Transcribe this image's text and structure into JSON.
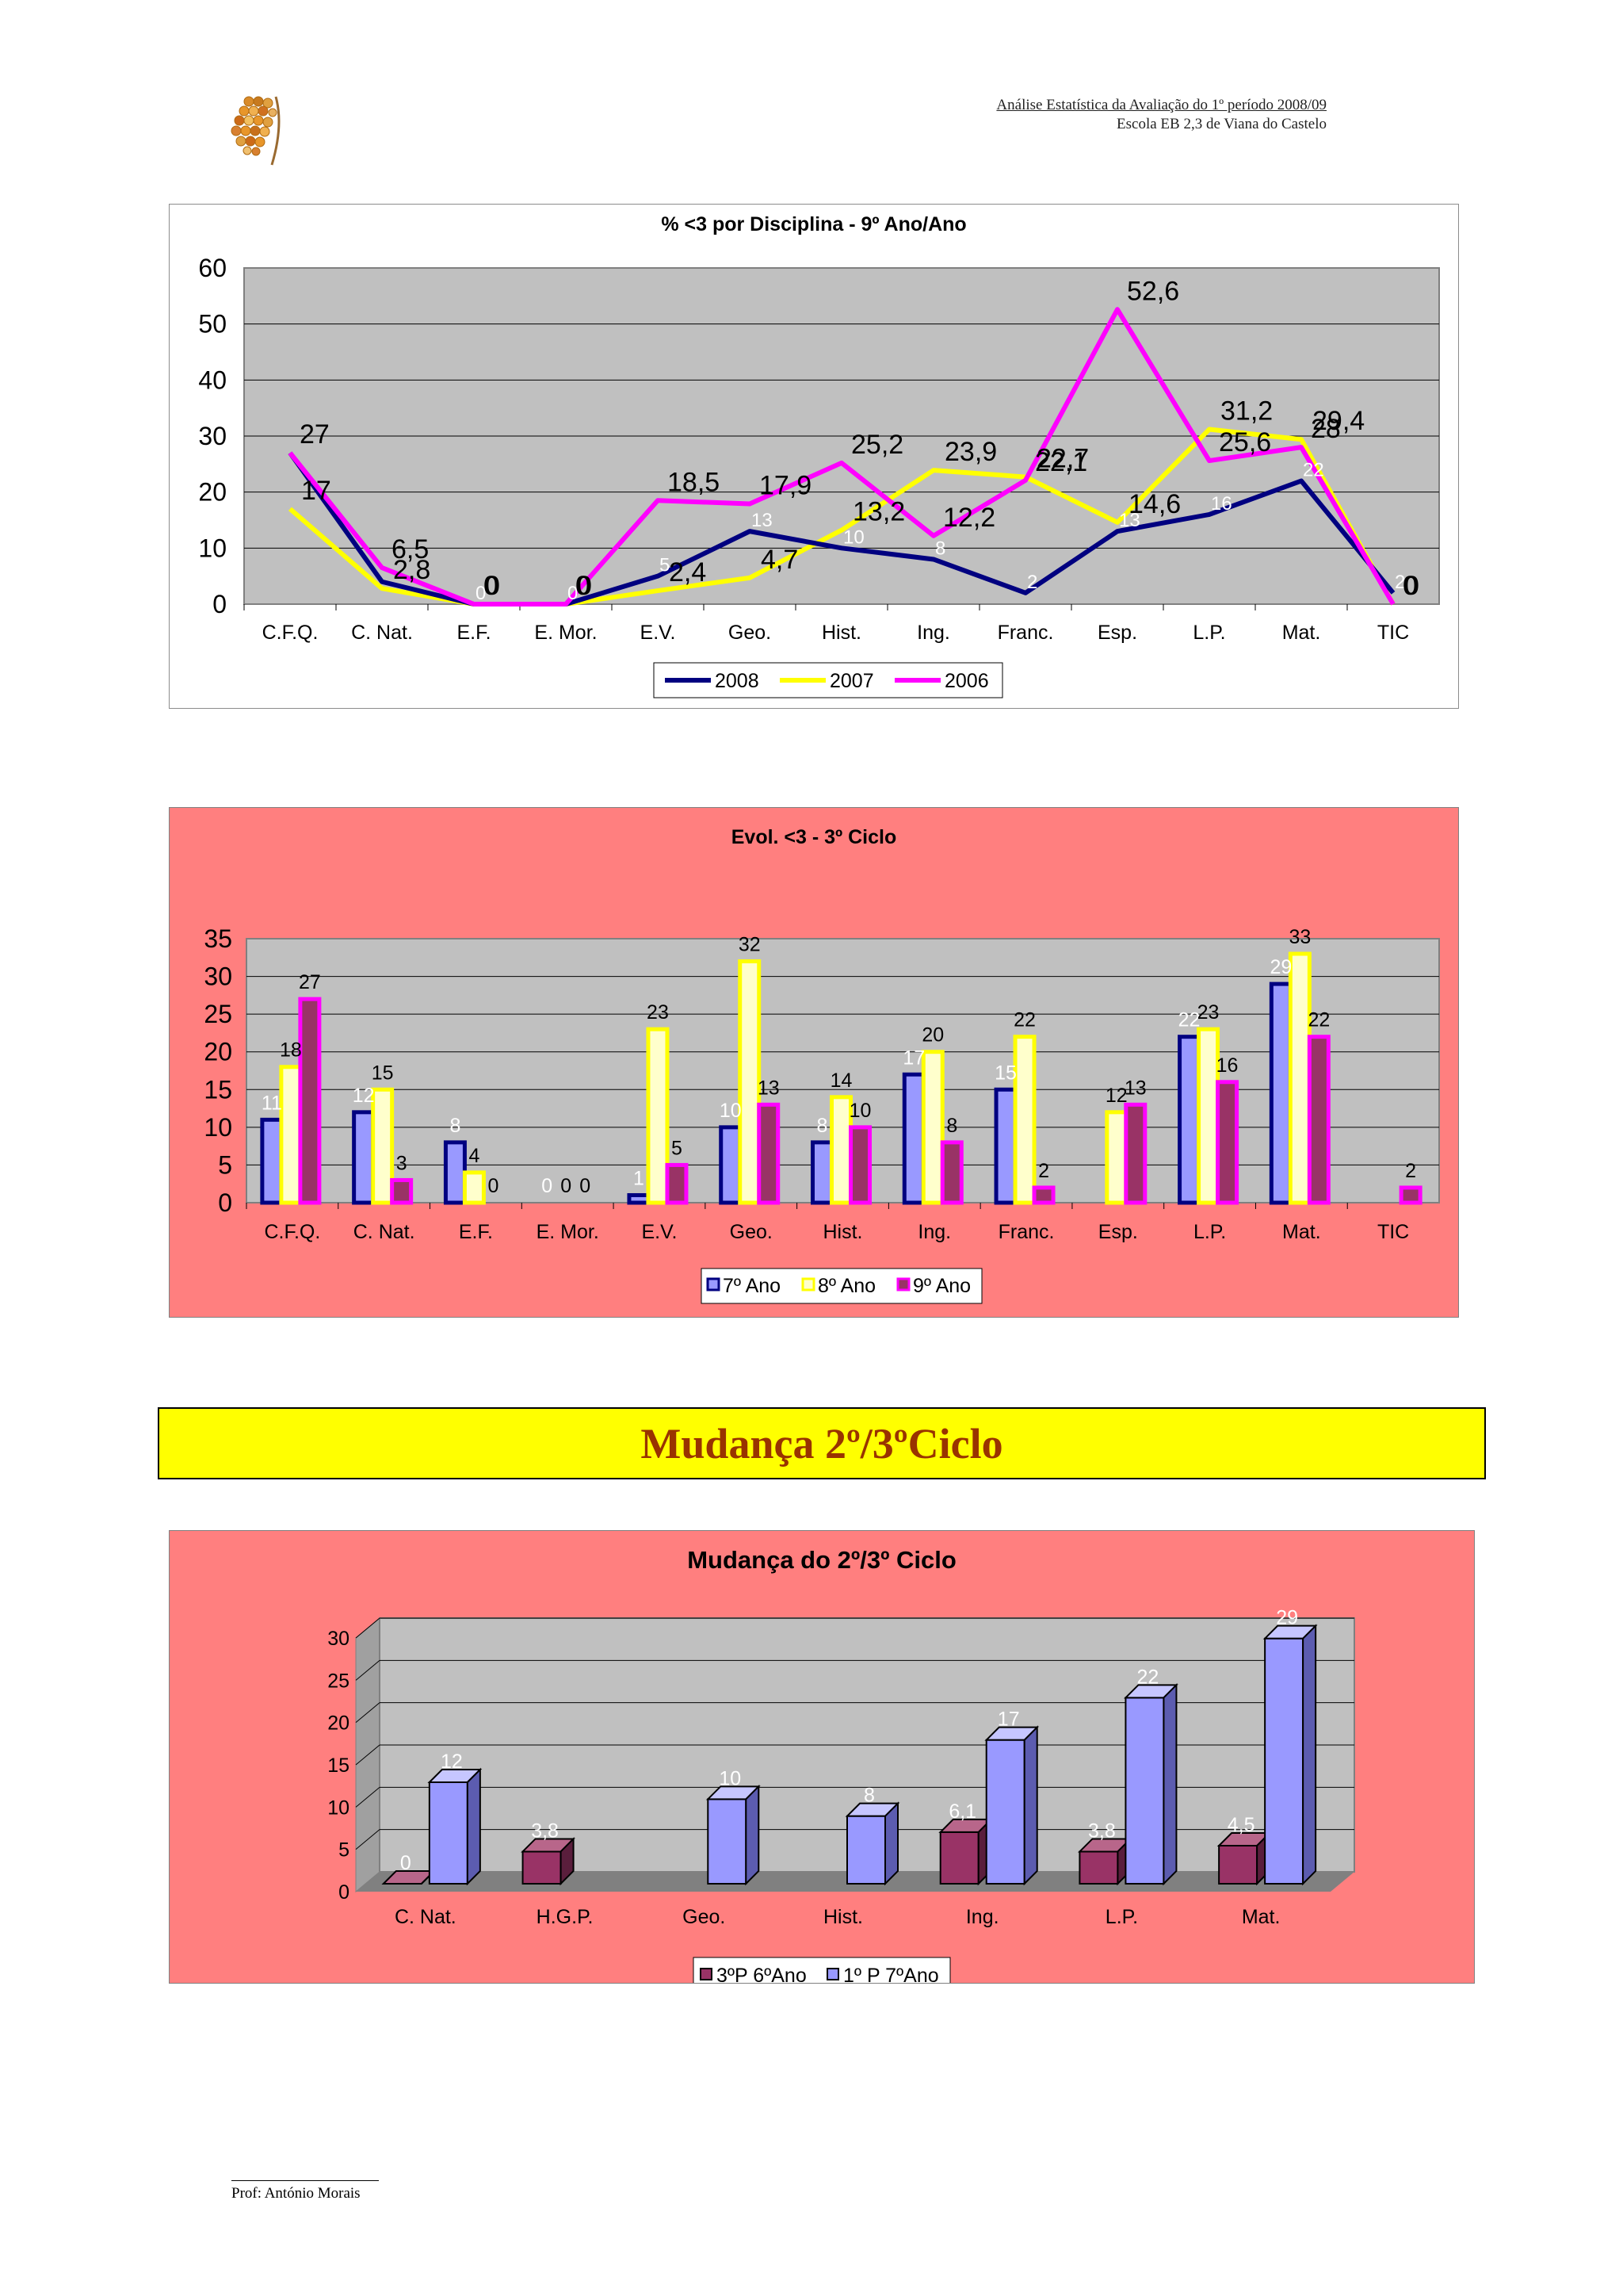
{
  "header": {
    "line1": "Análise Estatística da Avaliação do 1º período 2008/09",
    "line2": "Escola EB 2,3 de Viana do Castelo"
  },
  "banner": {
    "title": "Mudança 2º/3ºCiclo"
  },
  "footer": {
    "author": "Prof: António Morais"
  },
  "colors": {
    "chart_bg": "#c0c0c0",
    "panel_pink": "#ff7f7f",
    "series_2008": "#000080",
    "series_2007": "#ffff00",
    "series_2006": "#ff00ff",
    "bar_7": "#9999ff",
    "bar_8": "#ffffcc",
    "bar_9": "#993366",
    "bar3_a": "#993366",
    "bar3_b": "#9999ff",
    "banner_bg": "#ffff00",
    "banner_text": "#993300"
  },
  "chart_data": [
    {
      "type": "line",
      "title": "% <3 por Disciplina - 9º Ano/Ano",
      "categories": [
        "C.F.Q.",
        "C. Nat.",
        "E.F.",
        "E. Mor.",
        "E.V.",
        "Geo.",
        "Hist.",
        "Ing.",
        "Franc.",
        "Esp.",
        "L.P.",
        "Mat.",
        "TIC"
      ],
      "ylim": [
        0,
        60
      ],
      "yticks": [
        0,
        10,
        20,
        30,
        40,
        50,
        60
      ],
      "legend": "bottom",
      "series": [
        {
          "name": "2008",
          "values": [
            27,
            4,
            0,
            0,
            5,
            13,
            10,
            8,
            2,
            13,
            16,
            22,
            2
          ],
          "labels": [
            "",
            "",
            "0",
            "0",
            "5",
            "13",
            "10",
            "8",
            "2",
            "13",
            "16",
            "22",
            "2"
          ]
        },
        {
          "name": "2007",
          "values": [
            17,
            2.8,
            0,
            0,
            2.4,
            4.7,
            13.2,
            23.9,
            22.7,
            14.6,
            31.2,
            29.4,
            0
          ],
          "labels": [
            "17",
            "2,8",
            "0",
            "0",
            "2,4",
            "4,7",
            "13,2",
            "23,9",
            "22,7",
            "14,6",
            "31,2",
            "29,4",
            "0"
          ]
        },
        {
          "name": "2006",
          "values": [
            27,
            6.5,
            0,
            0,
            18.5,
            17.9,
            25.2,
            12.2,
            22.1,
            52.6,
            25.6,
            28,
            0
          ],
          "labels": [
            "27",
            "6,5",
            "0",
            "0",
            "18,5",
            "17,9",
            "25,2",
            "12,2",
            "22,1",
            "52,6",
            "25,6",
            "28",
            "0"
          ]
        }
      ]
    },
    {
      "type": "bar",
      "title": "Evol. <3 - 3º Ciclo",
      "categories": [
        "C.F.Q.",
        "C. Nat.",
        "E.F.",
        "E. Mor.",
        "E.V.",
        "Geo.",
        "Hist.",
        "Ing.",
        "Franc.",
        "Esp.",
        "L.P.",
        "Mat.",
        "TIC"
      ],
      "ylim": [
        0,
        35
      ],
      "yticks": [
        0,
        5,
        10,
        15,
        20,
        25,
        30,
        35
      ],
      "legend": "bottom",
      "series": [
        {
          "name": "7º Ano",
          "values": [
            11,
            12,
            8,
            0,
            1,
            10,
            8,
            17,
            15,
            null,
            22,
            29,
            null
          ]
        },
        {
          "name": "8º Ano",
          "values": [
            18,
            15,
            4,
            0,
            23,
            32,
            14,
            20,
            22,
            12,
            23,
            33,
            null
          ]
        },
        {
          "name": "9º Ano",
          "values": [
            27,
            3,
            0,
            0,
            5,
            13,
            10,
            8,
            2,
            13,
            16,
            22,
            2
          ]
        }
      ]
    },
    {
      "type": "bar",
      "title": "Mudança do 2º/3º Ciclo",
      "categories": [
        "C. Nat.",
        "H.G.P.",
        "Geo.",
        "Hist.",
        "Ing.",
        "L.P.",
        "Mat."
      ],
      "ylim": [
        0,
        30
      ],
      "yticks": [
        0,
        5,
        10,
        15,
        20,
        25,
        30
      ],
      "legend": "bottom",
      "series": [
        {
          "name": "3ºP 6ºAno",
          "values": [
            0,
            3.8,
            null,
            null,
            6.1,
            3.8,
            4.5
          ],
          "labels": [
            "0",
            "3,8",
            "",
            "",
            "6,1",
            "3,8",
            "4,5"
          ]
        },
        {
          "name": "1º P 7ºAno",
          "values": [
            12,
            null,
            10,
            8,
            17,
            22,
            29
          ],
          "labels": [
            "12",
            "",
            "10",
            "8",
            "17",
            "22",
            "29"
          ]
        }
      ]
    }
  ]
}
